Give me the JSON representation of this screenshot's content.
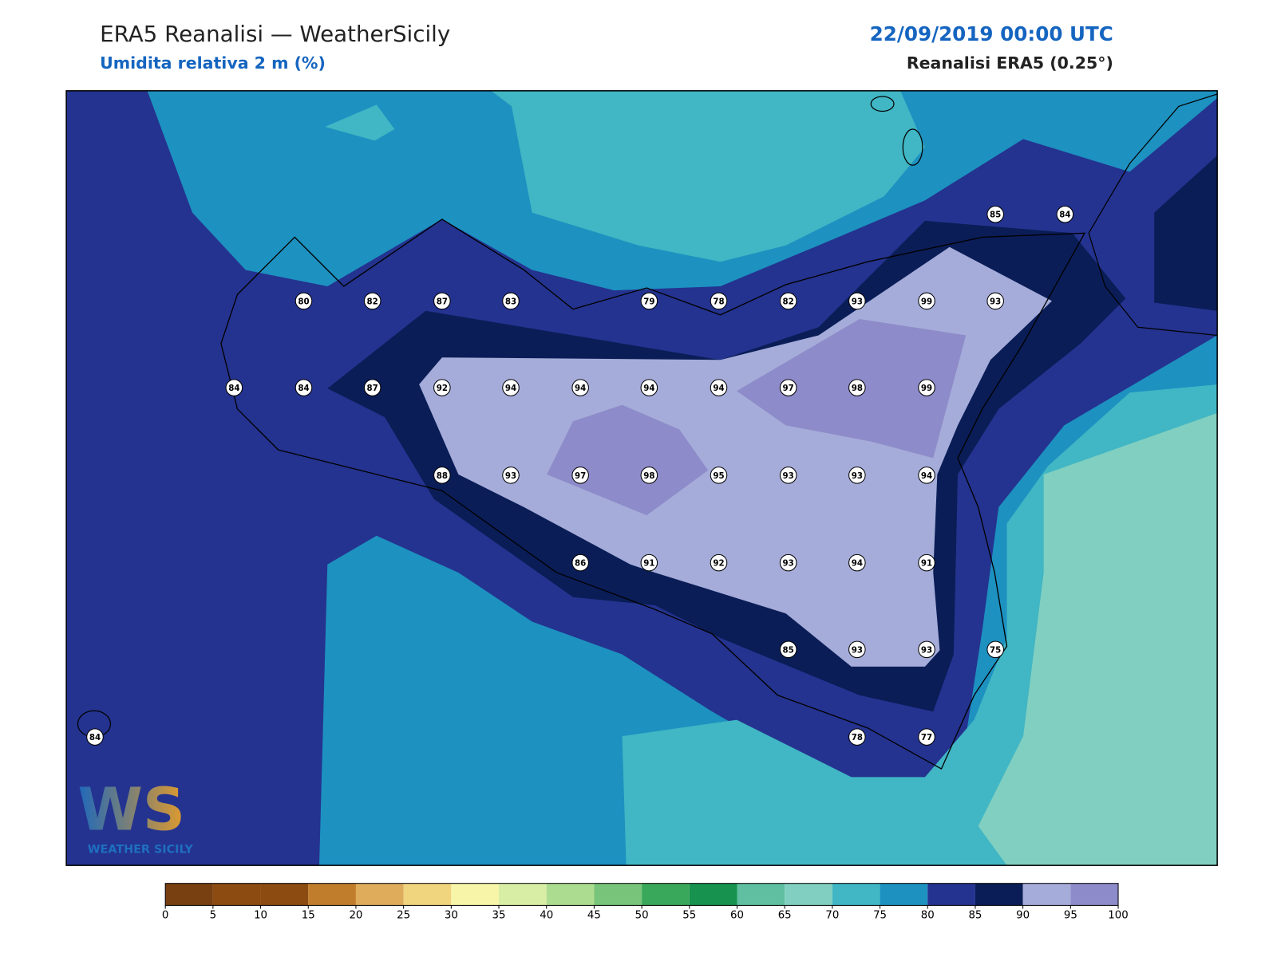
{
  "header": {
    "title": "ERA5 Reanalisi — WeatherSicily",
    "subtitle": "Umidita relativa 2 m (%)",
    "date": "22/09/2019 00:00 UTC",
    "source": "Reanalisi ERA5 (0.25°)"
  },
  "stations": {
    "values": [
      85,
      84,
      80,
      82,
      87,
      83,
      79,
      78,
      82,
      93,
      99,
      93,
      84,
      84,
      87,
      92,
      94,
      94,
      94,
      94,
      97,
      98,
      99,
      88,
      93,
      97,
      98,
      95,
      93,
      93,
      94,
      86,
      91,
      92,
      93,
      94,
      91,
      85,
      93,
      93,
      75,
      78,
      77,
      84
    ]
  },
  "colorbar": {
    "ticks": [
      0,
      5,
      10,
      15,
      20,
      25,
      30,
      35,
      40,
      45,
      50,
      55,
      60,
      65,
      70,
      75,
      80,
      85,
      90,
      95,
      100
    ],
    "colors": [
      "#784011",
      "#8c4b10",
      "#8c4b10",
      "#c07e2c",
      "#deac5b",
      "#f0d47e",
      "#f7f5a8",
      "#d8eea5",
      "#acdc8f",
      "#78c47a",
      "#3aa85a",
      "#17934f",
      "#5fbfa0",
      "#80cfc0",
      "#41b6c4",
      "#1d91c0",
      "#24338f",
      "#0a1d57",
      "#a5acd9",
      "#8d8bc9"
    ]
  },
  "logo": {
    "letters": "WS",
    "text": "WEATHER SICILY"
  }
}
